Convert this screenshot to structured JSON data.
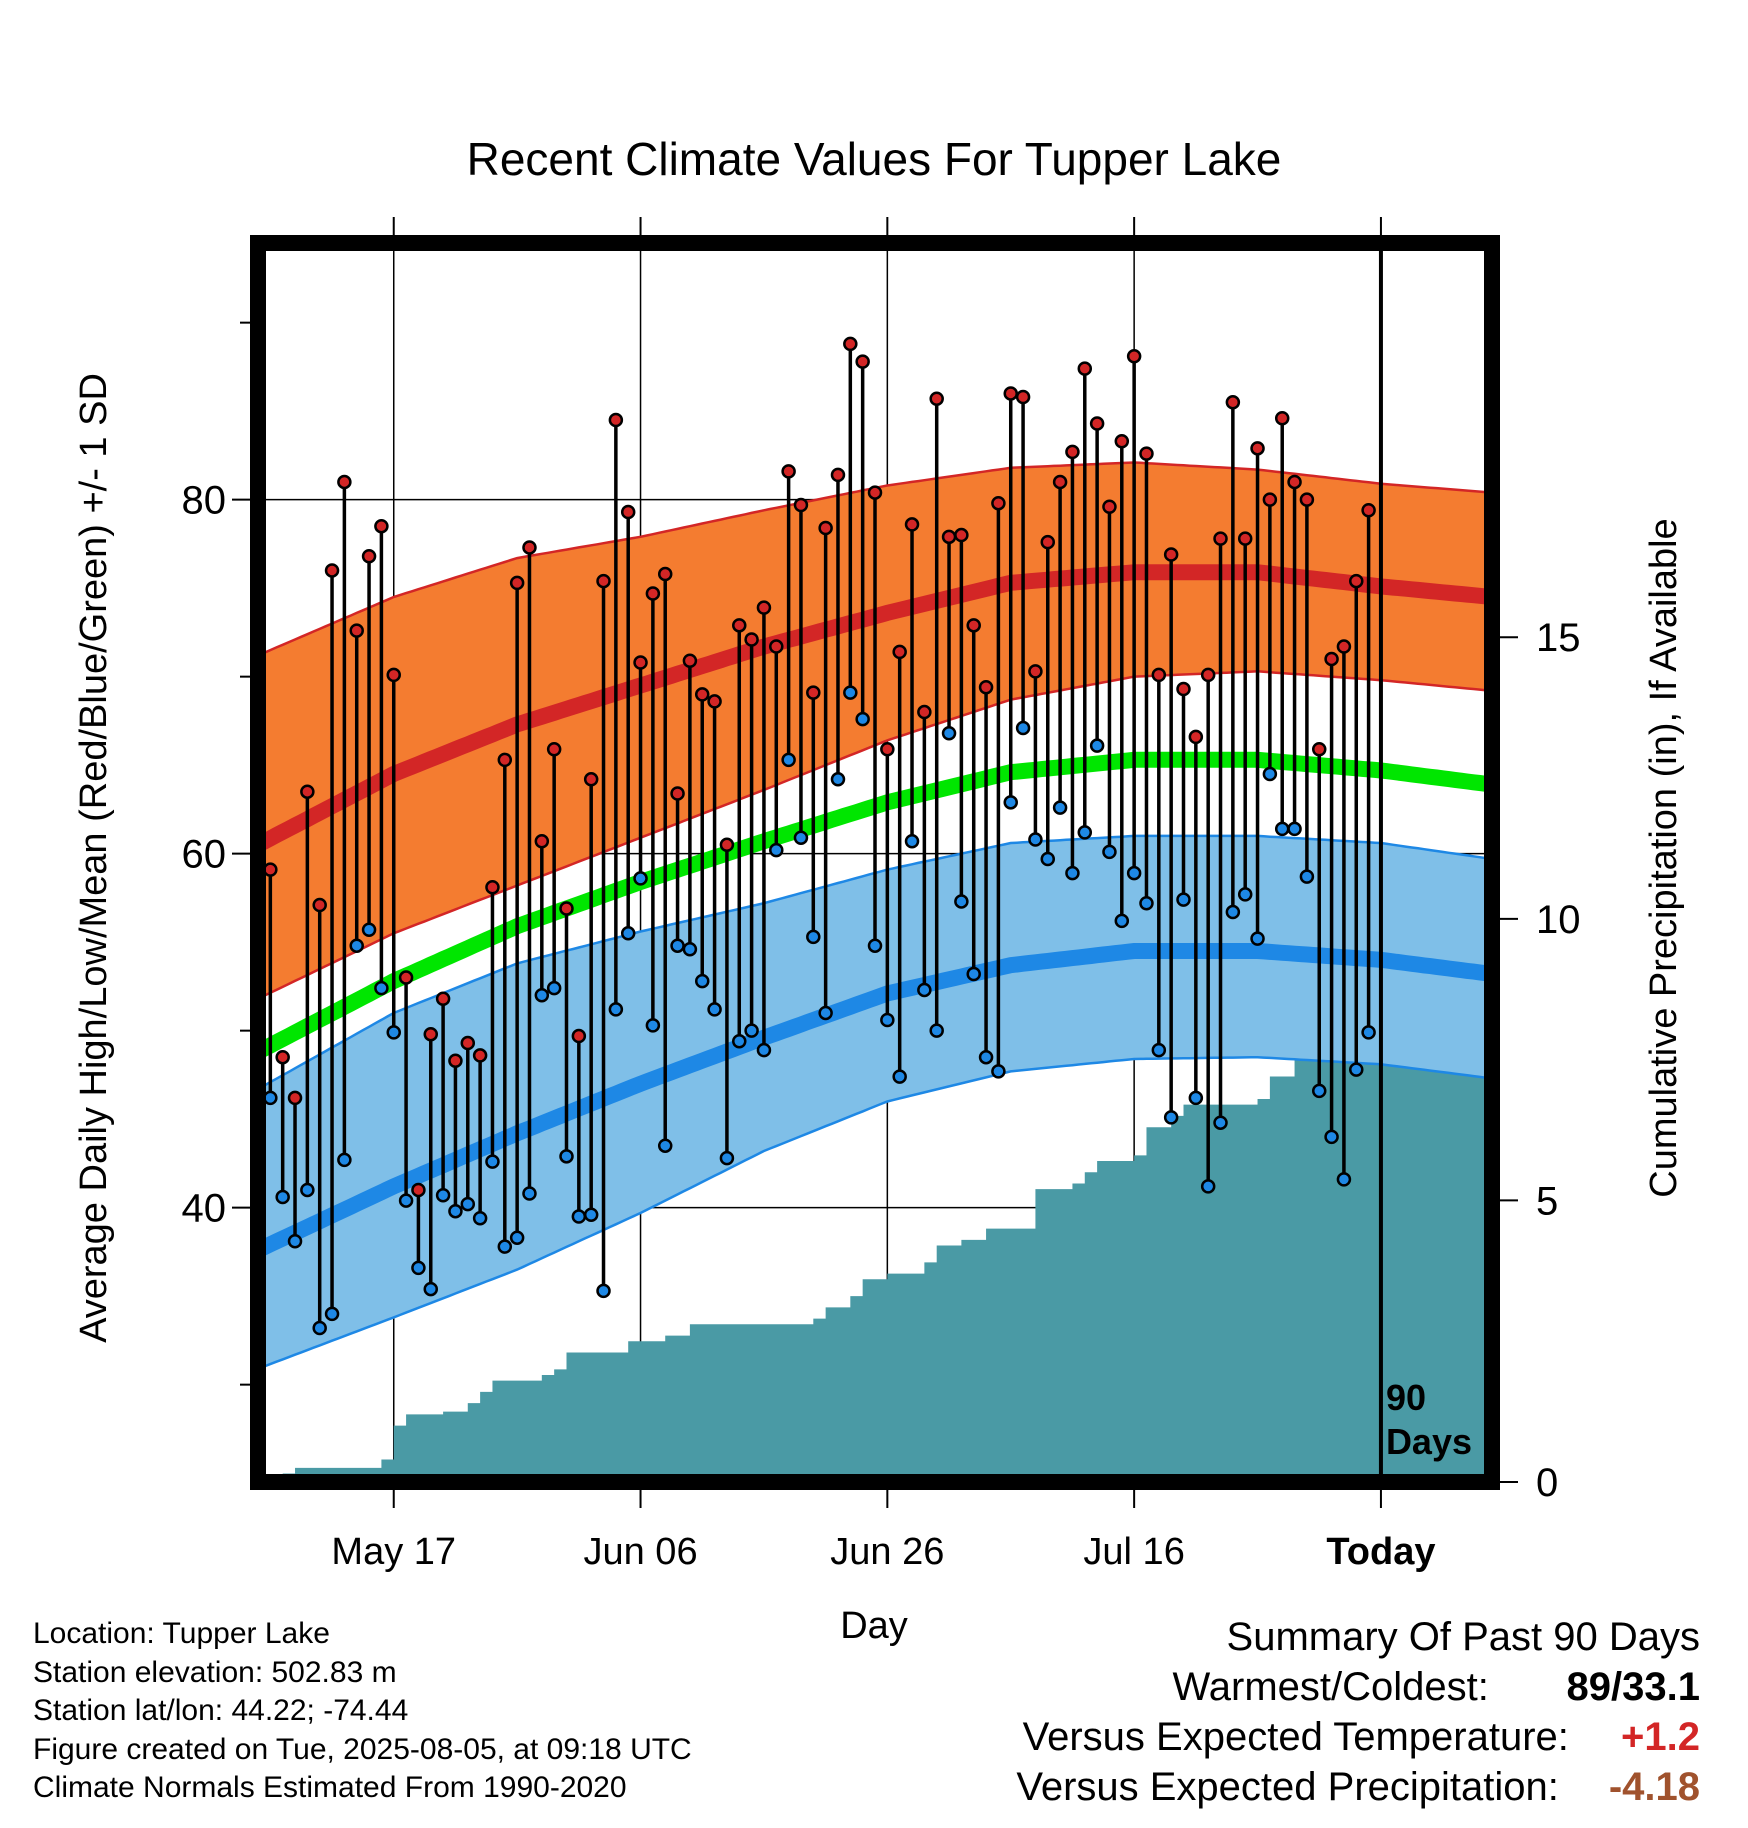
{
  "chart_data": {
    "type": "line",
    "title": "Recent Climate Values For Tupper Lake",
    "xlabel": "Day",
    "ylabel": "Average Daily High/Low/Mean (Red/Blue/Green) +/- 1 SD",
    "y2label": "Cumulative Precipitation (in), If Available",
    "x_tick_labels": [
      "May 17",
      "Jun 06",
      "Jun 26",
      "Jul 16",
      "Today"
    ],
    "x_tick_days": [
      10,
      30,
      50,
      70,
      90
    ],
    "xlim": [
      -1,
      99
    ],
    "ylim": [
      24.5,
      94.5
    ],
    "y_ticks": [
      40,
      60,
      80
    ],
    "y2lim": [
      0,
      22
    ],
    "y2_ticks": [
      0,
      5,
      10,
      15
    ],
    "today_marker": "90\nDays",
    "normal_high": {
      "days": [
        -1,
        10,
        20,
        30,
        40,
        50,
        60,
        70,
        80,
        90,
        99
      ],
      "mean": [
        60.5,
        64.5,
        67.3,
        69.5,
        71.7,
        73.6,
        75.3,
        75.9,
        75.9,
        75.1,
        74.5
      ],
      "upper": [
        71.2,
        74.5,
        76.7,
        77.9,
        79.4,
        80.8,
        81.8,
        82.1,
        81.7,
        80.9,
        80.4
      ],
      "lower": [
        51.8,
        55.5,
        58.2,
        60.9,
        63.6,
        66.4,
        68.7,
        70.0,
        70.3,
        69.8,
        69.2
      ]
    },
    "normal_mean": {
      "days": [
        -1,
        10,
        20,
        30,
        40,
        50,
        60,
        70,
        80,
        90,
        99
      ],
      "values": [
        48.8,
        52.8,
        55.9,
        58.4,
        60.7,
        62.9,
        64.6,
        65.3,
        65.3,
        64.7,
        63.9
      ]
    },
    "normal_low": {
      "days": [
        -1,
        10,
        20,
        30,
        40,
        50,
        60,
        70,
        80,
        90,
        99
      ],
      "mean": [
        37.6,
        41.2,
        44.2,
        47.0,
        49.6,
        52.1,
        53.7,
        54.5,
        54.5,
        54.0,
        53.2
      ],
      "upper": [
        46.7,
        51.0,
        53.8,
        55.6,
        57.2,
        59.1,
        60.6,
        61.0,
        61.0,
        60.6,
        59.7
      ],
      "lower": [
        30.9,
        33.8,
        36.5,
        39.7,
        43.2,
        46.0,
        47.7,
        48.4,
        48.5,
        48.1,
        47.3
      ]
    },
    "series": [
      {
        "name": "High",
        "color": "#d32626",
        "values": [
          59.1,
          48.5,
          46.2,
          63.5,
          57.1,
          76.0,
          81.0,
          72.6,
          76.8,
          78.5,
          70.1,
          53.0,
          41.0,
          49.8,
          51.8,
          48.3,
          49.3,
          48.6,
          58.1,
          65.3,
          75.3,
          77.3,
          60.7,
          65.9,
          56.9,
          49.7,
          64.2,
          75.4,
          84.5,
          79.3,
          70.8,
          74.7,
          75.8,
          63.4,
          70.9,
          69.0,
          68.6,
          60.5,
          72.9,
          72.1,
          73.9,
          71.7,
          81.6,
          79.7,
          69.1,
          78.4,
          81.4,
          88.8,
          87.8,
          80.4,
          65.9,
          71.4,
          78.6,
          68.0,
          85.7,
          77.9,
          78.0,
          72.9,
          69.4,
          79.8,
          86.0,
          85.8,
          70.3,
          77.6,
          81.0,
          82.7,
          87.4,
          84.3,
          79.6,
          83.3,
          88.1,
          82.6,
          70.1,
          76.9,
          69.3,
          66.6,
          70.1,
          77.8,
          85.5,
          77.8,
          82.9,
          80.0,
          84.6,
          81.0,
          80.0,
          65.9,
          71.0,
          71.7,
          75.4,
          79.4
        ]
      },
      {
        "name": "Low",
        "color": "#1e88e5",
        "values": [
          46.2,
          40.6,
          38.1,
          41.0,
          33.2,
          34.0,
          42.7,
          54.8,
          55.7,
          52.4,
          49.9,
          40.4,
          36.6,
          35.4,
          40.7,
          39.8,
          40.2,
          39.4,
          42.6,
          37.8,
          38.3,
          40.8,
          52.0,
          52.4,
          42.9,
          39.5,
          39.6,
          35.3,
          51.2,
          55.5,
          58.6,
          50.3,
          43.5,
          54.8,
          54.6,
          52.8,
          51.2,
          42.8,
          49.4,
          50.0,
          48.9,
          60.2,
          65.3,
          60.9,
          55.3,
          51.0,
          64.2,
          69.1,
          67.6,
          54.8,
          50.6,
          47.4,
          60.7,
          52.3,
          50.0,
          66.8,
          57.3,
          53.2,
          48.5,
          47.7,
          62.9,
          67.1,
          60.8,
          59.7,
          62.6,
          58.9,
          61.2,
          66.1,
          60.1,
          56.2,
          58.9,
          57.2,
          48.9,
          45.1,
          57.4,
          46.2,
          41.2,
          44.8,
          56.7,
          57.7,
          55.2,
          64.5,
          61.4,
          61.4,
          58.7,
          46.6,
          44.0,
          41.6,
          47.8,
          49.9
        ]
      }
    ],
    "precip_steps": [
      [
        -1,
        0
      ],
      [
        1,
        0.15
      ],
      [
        2,
        0.25
      ],
      [
        9,
        0.4
      ],
      [
        10,
        1.0
      ],
      [
        11,
        1.2
      ],
      [
        14,
        1.25
      ],
      [
        16,
        1.4
      ],
      [
        17,
        1.6
      ],
      [
        18,
        1.8
      ],
      [
        22,
        1.9
      ],
      [
        23,
        2.0
      ],
      [
        24,
        2.3
      ],
      [
        29,
        2.5
      ],
      [
        32,
        2.6
      ],
      [
        34,
        2.8
      ],
      [
        44,
        2.9
      ],
      [
        45,
        3.1
      ],
      [
        47,
        3.3
      ],
      [
        48,
        3.6
      ],
      [
        50,
        3.7
      ],
      [
        53,
        3.9
      ],
      [
        54,
        4.2
      ],
      [
        56,
        4.3
      ],
      [
        58,
        4.5
      ],
      [
        62,
        5.2
      ],
      [
        65,
        5.3
      ],
      [
        66,
        5.5
      ],
      [
        67,
        5.7
      ],
      [
        70,
        5.8
      ],
      [
        71,
        6.3
      ],
      [
        73,
        6.5
      ],
      [
        74,
        6.7
      ],
      [
        80,
        6.8
      ],
      [
        81,
        7.2
      ],
      [
        83,
        8.4
      ],
      [
        99,
        8.4
      ]
    ]
  },
  "footer": {
    "location": "Location: Tupper Lake",
    "elevation": "Station elevation: 502.83 m",
    "latlon": "Station lat/lon: 44.22; -74.44",
    "created": "Figure created on Tue, 2025-08-05, at 09:18 UTC",
    "normals": "Climate Normals Estimated From 1990-2020"
  },
  "summary": {
    "title": "Summary Of Past 90 Days",
    "warmest_label": "Warmest/Coldest:",
    "warmest_value": "89/33.1",
    "temp_label": "Versus Expected Temperature:",
    "temp_value": "+1.2",
    "temp_color": "#d32626",
    "precip_label": "Versus Expected Precipitation:",
    "precip_value": "-4.18",
    "precip_color": "#a0522d"
  },
  "colors": {
    "high_band": "#f47c30",
    "high_line": "#d32626",
    "low_band": "#7fbfe8",
    "low_line": "#1e88e5",
    "mean_line": "#00e600",
    "precip_fill": "#4a9aa5"
  }
}
